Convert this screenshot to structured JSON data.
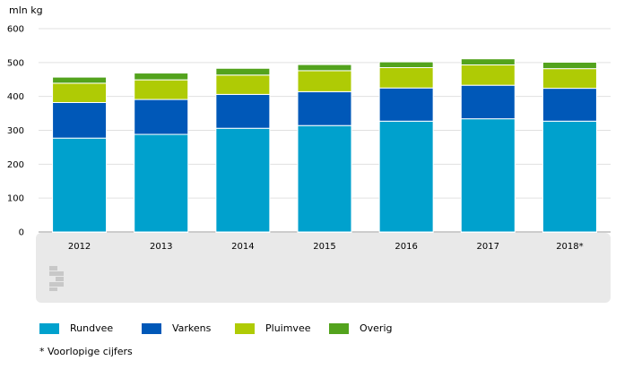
{
  "chart_data": {
    "type": "bar",
    "stacked": true,
    "unit_label": "mln kg",
    "categories": [
      "2012",
      "2013",
      "2014",
      "2015",
      "2016",
      "2017",
      "2018*"
    ],
    "series": [
      {
        "name": "Rundvee",
        "color": "#00a1cd",
        "values": [
          277,
          288,
          306,
          314,
          327,
          334,
          327
        ]
      },
      {
        "name": "Varkens",
        "color": "#0058b8",
        "values": [
          105,
          103,
          100,
          100,
          98,
          99,
          97
        ]
      },
      {
        "name": "Pluimvee",
        "color": "#afcb05",
        "values": [
          57,
          58,
          57,
          62,
          60,
          60,
          58
        ]
      },
      {
        "name": "Overig",
        "color": "#53a31d",
        "values": [
          18,
          20,
          20,
          18,
          17,
          18,
          19
        ]
      }
    ],
    "y_ticks": [
      0,
      100,
      200,
      300,
      400,
      500,
      600
    ],
    "ylim": [
      0,
      600
    ],
    "grid": true,
    "legend_position": "bottom"
  },
  "legend_items": [
    {
      "name": "Rundvee",
      "color": "#00a1cd"
    },
    {
      "name": "Varkens",
      "color": "#0058b8"
    },
    {
      "name": "Pluimvee",
      "color": "#afcb05"
    },
    {
      "name": "Overig",
      "color": "#53a31d"
    }
  ],
  "footnote": "* Voorlopige cijfers",
  "logo": "cbs",
  "colors": {
    "axis_band": "#e9e9e9",
    "grid": "#e0e0e0",
    "logo": "#c8c8c8"
  }
}
